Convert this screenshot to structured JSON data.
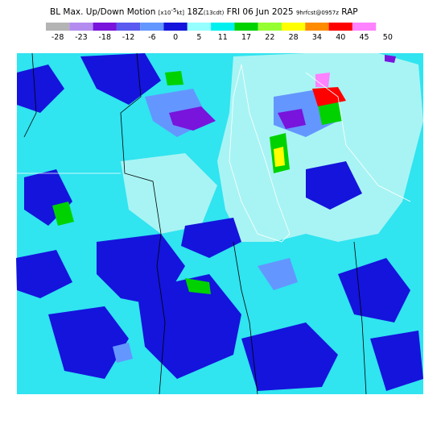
{
  "header": {
    "title": "BL Max. Up/Down Motion",
    "units_prefix": "[x10",
    "units_exponent": "-5",
    "units_suffix": "kt]",
    "valid_time": "18Z",
    "local_time": "(13cdt)",
    "date": "FRI 06 Jun 2025",
    "forecast": "9hrfcst@0957z",
    "model": "RAP"
  },
  "colorbar": {
    "labels": [
      -28,
      -23,
      -18,
      -12,
      -6,
      0,
      5,
      11,
      17,
      22,
      28,
      34,
      40,
      45,
      50
    ],
    "colors": [
      "#b4b4b4",
      "#b48cf0",
      "#7814dc",
      "#5a5af0",
      "#6496ff",
      "#1414dc",
      "#96ffff",
      "#00f0f0",
      "#00d200",
      "#96ff32",
      "#ffff00",
      "#ff8c00",
      "#ff0000",
      "#ff82ff"
    ]
  }
}
